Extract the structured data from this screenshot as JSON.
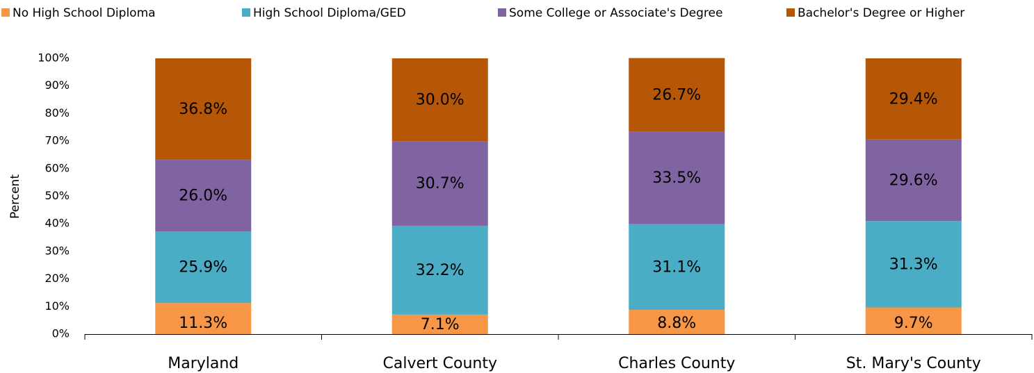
{
  "chart_data": {
    "type": "stacked_bar",
    "y_label": "Percent",
    "categories": [
      "Maryland",
      "Calvert County",
      "Charles County",
      "St. Mary's County"
    ],
    "series": [
      {
        "name": "No High School Diploma",
        "color": "#f79646",
        "values": [
          11.3,
          7.1,
          8.8,
          9.7
        ],
        "value_labels": [
          "11.3%",
          "7.1%",
          "8.8%",
          "9.7%"
        ]
      },
      {
        "name": "High School Diploma/GED",
        "color": "#4bacc6",
        "values": [
          25.9,
          32.2,
          31.1,
          31.3
        ],
        "value_labels": [
          "25.9%",
          "32.2%",
          "31.1%",
          "31.3%"
        ]
      },
      {
        "name": "Some College or Associate's Degree",
        "color": "#8064a2",
        "values": [
          26.0,
          30.7,
          33.5,
          29.6
        ],
        "value_labels": [
          "26.0%",
          "30.7%",
          "33.5%",
          "29.6%"
        ]
      },
      {
        "name": "Bachelor's Degree or Higher",
        "color": "#b65708",
        "values": [
          36.8,
          30.0,
          26.7,
          29.4
        ],
        "value_labels": [
          "36.8%",
          "30.0%",
          "26.7%",
          "29.4%"
        ]
      }
    ],
    "ylim": [
      0,
      100
    ],
    "yticks": [
      {
        "value": 0,
        "label": "0%"
      },
      {
        "value": 10,
        "label": "10%"
      },
      {
        "value": 20,
        "label": "20%"
      },
      {
        "value": 30,
        "label": "30%"
      },
      {
        "value": 40,
        "label": "40%"
      },
      {
        "value": 50,
        "label": "50%"
      },
      {
        "value": 60,
        "label": "60%"
      },
      {
        "value": 70,
        "label": "70%"
      },
      {
        "value": 80,
        "label": "80%"
      },
      {
        "value": 90,
        "label": "90%"
      },
      {
        "value": 100,
        "label": "100%"
      }
    ],
    "legend": "top"
  }
}
